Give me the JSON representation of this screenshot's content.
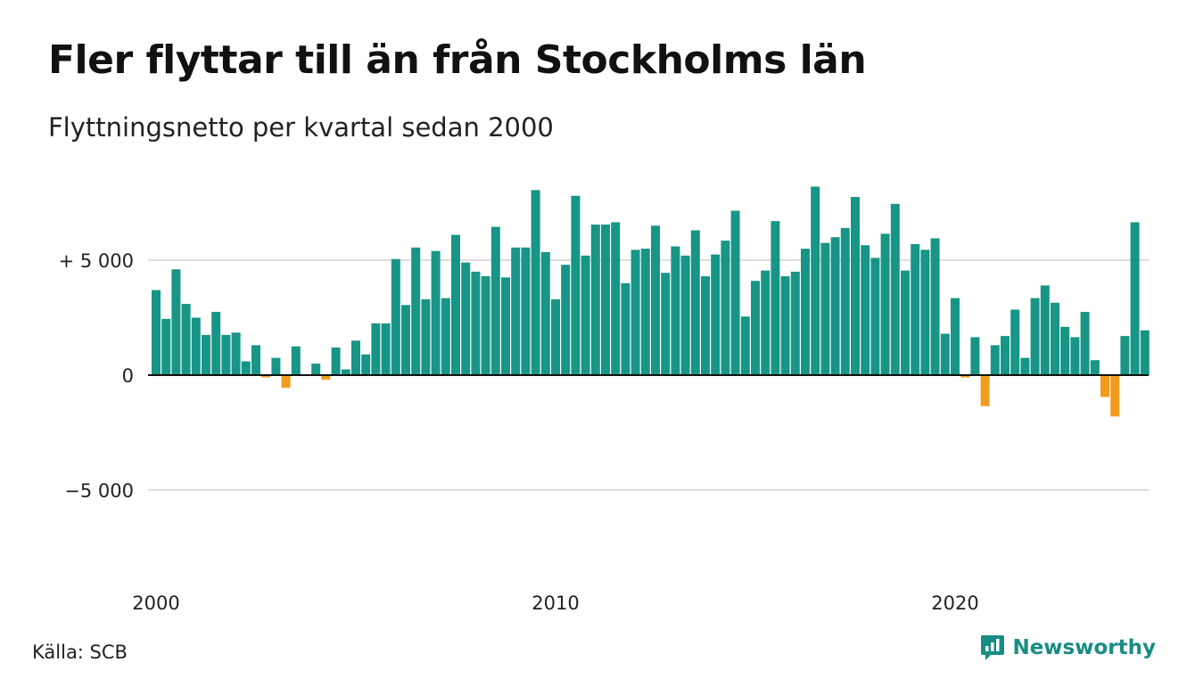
{
  "title": "Fler flyttar till än från Stockholms län",
  "subtitle": "Flyttningsnetto per kvartal sedan 2000",
  "source": "Källa: SCB",
  "brand": {
    "name": "Newsworthy",
    "icon": "newsworthy-logo-icon",
    "color": "#178d83"
  },
  "colors": {
    "positive": "#179586",
    "negative": "#f29c1f",
    "grid": "#dddddd",
    "zero_line": "#111111"
  },
  "chart_data": {
    "type": "bar",
    "title": "Fler flyttar till än från Stockholms län",
    "subtitle": "Flyttningsnetto per kvartal sedan 2000",
    "xlabel": "",
    "ylabel": "",
    "ylim": [
      -9000,
      9000
    ],
    "y_ticks": [
      {
        "value": 5000,
        "label": "+ 5 000"
      },
      {
        "value": 0,
        "label": "0"
      },
      {
        "value": -5000,
        "label": "−5 000"
      }
    ],
    "x_ticks": [
      {
        "index": 0,
        "label": "2000"
      },
      {
        "index": 40,
        "label": "2010"
      },
      {
        "index": 80,
        "label": "2020"
      }
    ],
    "grid": true,
    "categories": [
      "2000K1",
      "2000K2",
      "2000K3",
      "2000K4",
      "2001K1",
      "2001K2",
      "2001K3",
      "2001K4",
      "2002K1",
      "2002K2",
      "2002K3",
      "2002K4",
      "2003K1",
      "2003K2",
      "2003K3",
      "2003K4",
      "2004K1",
      "2004K2",
      "2004K3",
      "2004K4",
      "2005K1",
      "2005K2",
      "2005K3",
      "2005K4",
      "2006K1",
      "2006K2",
      "2006K3",
      "2006K4",
      "2007K1",
      "2007K2",
      "2007K3",
      "2007K4",
      "2008K1",
      "2008K2",
      "2008K3",
      "2008K4",
      "2009K1",
      "2009K2",
      "2009K3",
      "2009K4",
      "2010K1",
      "2010K2",
      "2010K3",
      "2010K4",
      "2011K1",
      "2011K2",
      "2011K3",
      "2011K4",
      "2012K1",
      "2012K2",
      "2012K3",
      "2012K4",
      "2013K1",
      "2013K2",
      "2013K3",
      "2013K4",
      "2014K1",
      "2014K2",
      "2014K3",
      "2014K4",
      "2015K1",
      "2015K2",
      "2015K3",
      "2015K4",
      "2016K1",
      "2016K2",
      "2016K3",
      "2016K4",
      "2017K1",
      "2017K2",
      "2017K3",
      "2017K4",
      "2018K1",
      "2018K2",
      "2018K3",
      "2018K4",
      "2019K1",
      "2019K2",
      "2019K3",
      "2019K4",
      "2020K1",
      "2020K2",
      "2020K3",
      "2020K4",
      "2021K1",
      "2021K2",
      "2021K3",
      "2021K4",
      "2022K1",
      "2022K2",
      "2022K3",
      "2022K4",
      "2023K1",
      "2023K2",
      "2023K3",
      "2023K4",
      "2024K1",
      "2024K2",
      "2024K3",
      "2024K4"
    ],
    "values": [
      3700,
      2450,
      4600,
      3100,
      2500,
      1750,
      2750,
      1750,
      1850,
      600,
      1300,
      -100,
      750,
      -550,
      1250,
      0,
      500,
      -200,
      1200,
      250,
      1500,
      900,
      2250,
      2250,
      5050,
      3050,
      5550,
      3300,
      5400,
      3350,
      6100,
      4900,
      4500,
      4300,
      6450,
      4250,
      5550,
      5550,
      8050,
      5350,
      3300,
      4800,
      7800,
      5200,
      6550,
      6550,
      6650,
      4000,
      5450,
      5500,
      6500,
      4450,
      5600,
      5200,
      6300,
      4300,
      5250,
      5850,
      7150,
      2550,
      4100,
      4550,
      6700,
      4300,
      4500,
      5500,
      8200,
      5750,
      6000,
      6400,
      7750,
      5650,
      5100,
      6150,
      7450,
      4550,
      5700,
      5450,
      5950,
      1800,
      3350,
      -100,
      1650,
      -1350,
      1300,
      1700,
      2850,
      750,
      3350,
      3900,
      3150,
      2100,
      1650,
      2750,
      650,
      -950,
      -1800,
      1700,
      6650,
      1950
    ]
  }
}
